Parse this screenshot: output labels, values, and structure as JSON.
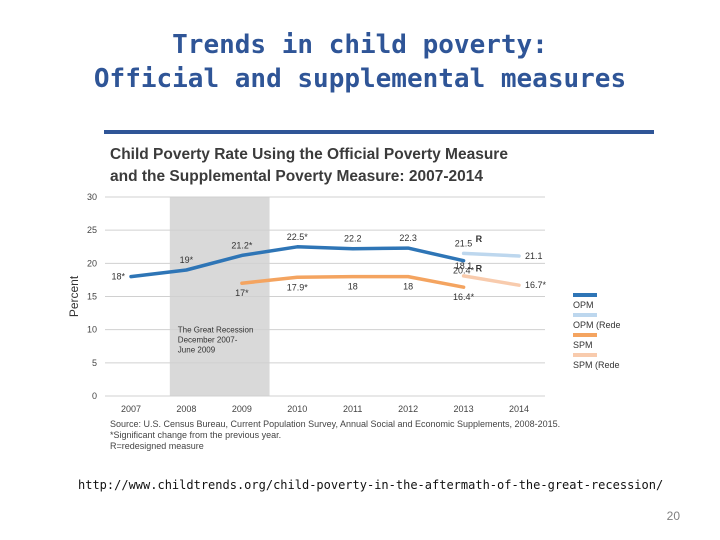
{
  "slide": {
    "title_line1": "Trends in child poverty:",
    "title_line2": "Official and supplemental measures",
    "url": "http://www.childtrends.org/child-poverty-in-the-aftermath-of-the-great-recession/",
    "page_number": "20",
    "title_color": "#2f5597"
  },
  "chart_data": {
    "type": "line",
    "title_line1": "Child Poverty Rate Using the Official Poverty Measure",
    "title_line2": "and the Supplemental Poverty Measure: 2007-2014",
    "ylabel": "Percent",
    "xlabel": "",
    "x": [
      2007,
      2008,
      2009,
      2010,
      2011,
      2012,
      2013,
      2014
    ],
    "x_tick_labels": [
      "2007",
      "2008",
      "2009",
      "2010",
      "2011",
      "2012",
      "2013",
      "2014"
    ],
    "ylim": [
      0,
      30
    ],
    "y_ticks": [
      0,
      5,
      10,
      15,
      20,
      25,
      30
    ],
    "y_tick_labels": [
      "0",
      "5",
      "10",
      "15",
      "20",
      "25",
      "30"
    ],
    "grid": true,
    "legend_position": "right",
    "series": [
      {
        "name": "OPM",
        "color": "#2e75b6",
        "points": [
          [
            2007,
            18
          ],
          [
            2008,
            19
          ],
          [
            2009,
            21.2
          ],
          [
            2010,
            22.5
          ],
          [
            2011,
            22.2
          ],
          [
            2012,
            22.3
          ],
          [
            2013,
            20.4
          ]
        ]
      },
      {
        "name": "OPM (Redesign)",
        "color": "#bdd7ee",
        "points": [
          [
            2013,
            21.5
          ],
          [
            2014,
            21.1
          ]
        ]
      },
      {
        "name": "SPM",
        "color": "#f4a460",
        "points": [
          [
            2009,
            17
          ],
          [
            2010,
            17.9
          ],
          [
            2011,
            18
          ],
          [
            2012,
            18
          ],
          [
            2013,
            16.4
          ]
        ]
      },
      {
        "name": "SPM (Redesign)",
        "color": "#f8cbad",
        "points": [
          [
            2013,
            18.1
          ],
          [
            2014,
            16.7
          ]
        ]
      }
    ],
    "data_labels": [
      {
        "text": "18*",
        "x": 2007,
        "y": 18,
        "pos": "left"
      },
      {
        "text": "19*",
        "x": 2008,
        "y": 19,
        "pos": "above"
      },
      {
        "text": "21.2*",
        "x": 2009,
        "y": 21.2,
        "pos": "above"
      },
      {
        "text": "22.5*",
        "x": 2010,
        "y": 22.5,
        "pos": "above"
      },
      {
        "text": "22.2",
        "x": 2011,
        "y": 22.2,
        "pos": "above"
      },
      {
        "text": "22.3",
        "x": 2012,
        "y": 22.3,
        "pos": "above"
      },
      {
        "text": "21.5",
        "x": 2013,
        "y": 21.5,
        "pos": "above"
      },
      {
        "text": "20.4*",
        "x": 2013,
        "y": 20.4,
        "pos": "below"
      },
      {
        "text": "21.1",
        "x": 2014,
        "y": 21.1,
        "pos": "right"
      },
      {
        "text": "17*",
        "x": 2009,
        "y": 17,
        "pos": "below"
      },
      {
        "text": "17.9*",
        "x": 2010,
        "y": 17.9,
        "pos": "below"
      },
      {
        "text": "18",
        "x": 2011,
        "y": 18,
        "pos": "below"
      },
      {
        "text": "18",
        "x": 2012,
        "y": 18,
        "pos": "below"
      },
      {
        "text": "18.1",
        "x": 2013,
        "y": 18.1,
        "pos": "above"
      },
      {
        "text": "16.4*",
        "x": 2013,
        "y": 16.4,
        "pos": "below"
      },
      {
        "text": "16.7*",
        "x": 2014,
        "y": 16.7,
        "pos": "right"
      }
    ],
    "redesign_markers": [
      {
        "text": "R",
        "x": 2013,
        "y": 23.2
      },
      {
        "text": "R",
        "x": 2013,
        "y": 18.8
      }
    ],
    "shaded_region": {
      "x_start": 2007.7,
      "x_end": 2009.5,
      "color": "#d9d9d9",
      "label_lines": [
        "The Great Recession",
        "December 2007-",
        "June 2009"
      ]
    },
    "source_notes": [
      "Source: U.S. Census Bureau, Current Population Survey, Annual Social and Economic Supplements, 2008-2015.",
      "*Significant change from the previous year.",
      "R=redesigned measure"
    ]
  }
}
